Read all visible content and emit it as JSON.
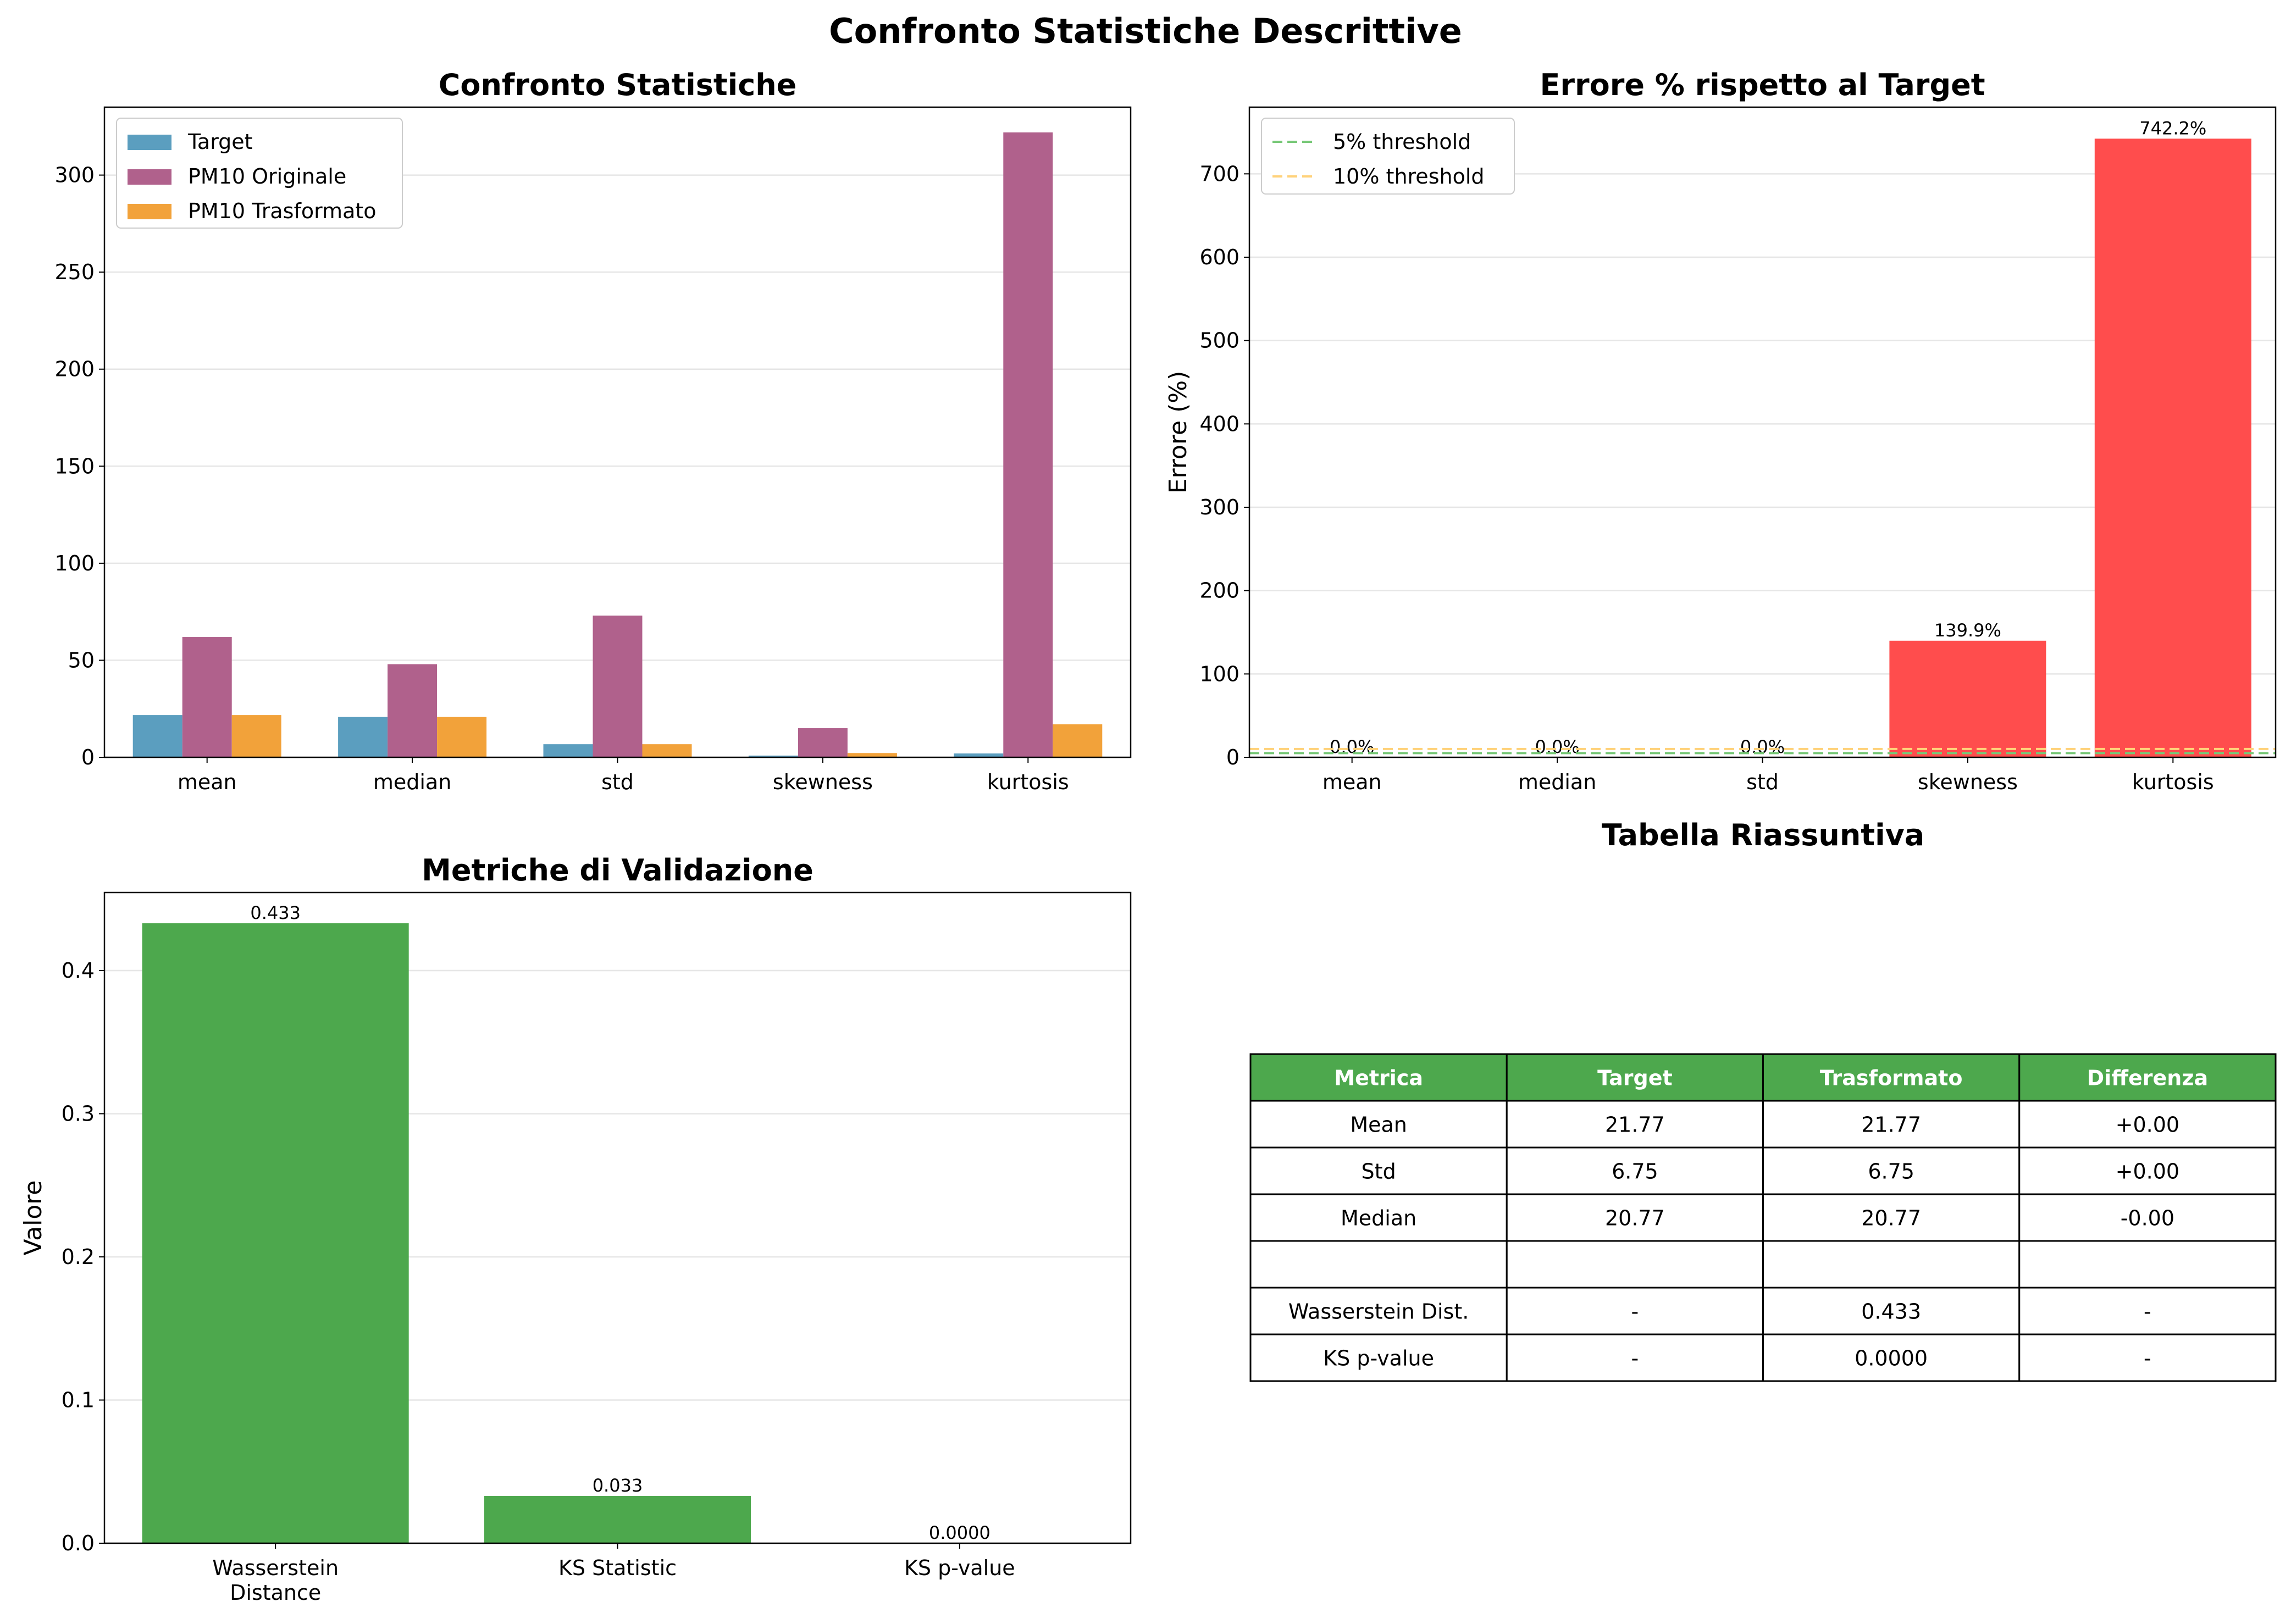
{
  "figure_title": "Confronto Statistiche Descrittive",
  "chart_data": [
    {
      "type": "bar",
      "title": "Confronto Statistiche",
      "xlabel": "",
      "ylabel": "",
      "categories": [
        "mean",
        "median",
        "std",
        "skewness",
        "kurtosis"
      ],
      "series": [
        {
          "name": "Target",
          "color": "#5b9ebf",
          "values": [
            21.77,
            20.77,
            6.75,
            0.9,
            2.0
          ]
        },
        {
          "name": "PM10 Originale",
          "color": "#b0618c",
          "values": [
            62,
            48,
            73,
            15,
            322
          ]
        },
        {
          "name": "PM10 Trasformato",
          "color": "#f2a23a",
          "values": [
            21.77,
            20.77,
            6.75,
            2.2,
            17
          ]
        }
      ],
      "ylim": [
        0,
        335
      ],
      "yticks": [
        0,
        50,
        100,
        150,
        200,
        250,
        300
      ],
      "grid": "y",
      "legend": "top-left"
    },
    {
      "type": "bar",
      "title": "Errore % rispetto al Target",
      "xlabel": "",
      "ylabel": "Errore (%)",
      "categories": [
        "mean",
        "median",
        "std",
        "skewness",
        "kurtosis"
      ],
      "values": [
        0.0,
        0.0,
        0.0,
        139.9,
        742.2
      ],
      "data_labels": [
        "0.0%",
        "0.0%",
        "0.0%",
        "139.9%",
        "742.2%"
      ],
      "bar_colors": [
        "#4da84d",
        "#4da84d",
        "#4da84d",
        "#ff4d4d",
        "#ff4d4d"
      ],
      "reference_lines": [
        {
          "name": "5% threshold",
          "value": 5,
          "color": "#77c877"
        },
        {
          "name": "10% threshold",
          "value": 10,
          "color": "#ffd27a"
        }
      ],
      "ylim": [
        0,
        780
      ],
      "yticks": [
        0,
        100,
        200,
        300,
        400,
        500,
        600,
        700
      ],
      "grid": "y",
      "legend": "top-left"
    },
    {
      "type": "bar",
      "title": "Metriche di Validazione",
      "xlabel": "",
      "ylabel": "Valore",
      "categories": [
        [
          "Wasserstein",
          "Distance"
        ],
        [
          "KS Statistic"
        ],
        [
          "KS p-value"
        ]
      ],
      "values": [
        0.433,
        0.033,
        0.0
      ],
      "data_labels": [
        "0.433",
        "0.033",
        "0.0000"
      ],
      "color": "#4da84d",
      "ylim": [
        0,
        0.4545
      ],
      "yticks": [
        0.0,
        0.1,
        0.2,
        0.3,
        0.4
      ],
      "ytick_labels": [
        "0.0",
        "0.1",
        "0.2",
        "0.3",
        "0.4"
      ],
      "grid": "y"
    },
    {
      "type": "table",
      "title": "Tabella Riassuntiva",
      "header_color": "#4da84d",
      "columns": [
        "Metrica",
        "Target",
        "Trasformato",
        "Differenza"
      ],
      "rows": [
        [
          "Mean",
          "21.77",
          "21.77",
          "+0.00"
        ],
        [
          "Std",
          "6.75",
          "6.75",
          "+0.00"
        ],
        [
          "Median",
          "20.77",
          "20.77",
          "-0.00"
        ],
        [
          "",
          "",
          "",
          ""
        ],
        [
          "Wasserstein Dist.",
          "-",
          "0.433",
          "-"
        ],
        [
          "KS p-value",
          "-",
          "0.0000",
          "-"
        ]
      ]
    }
  ]
}
